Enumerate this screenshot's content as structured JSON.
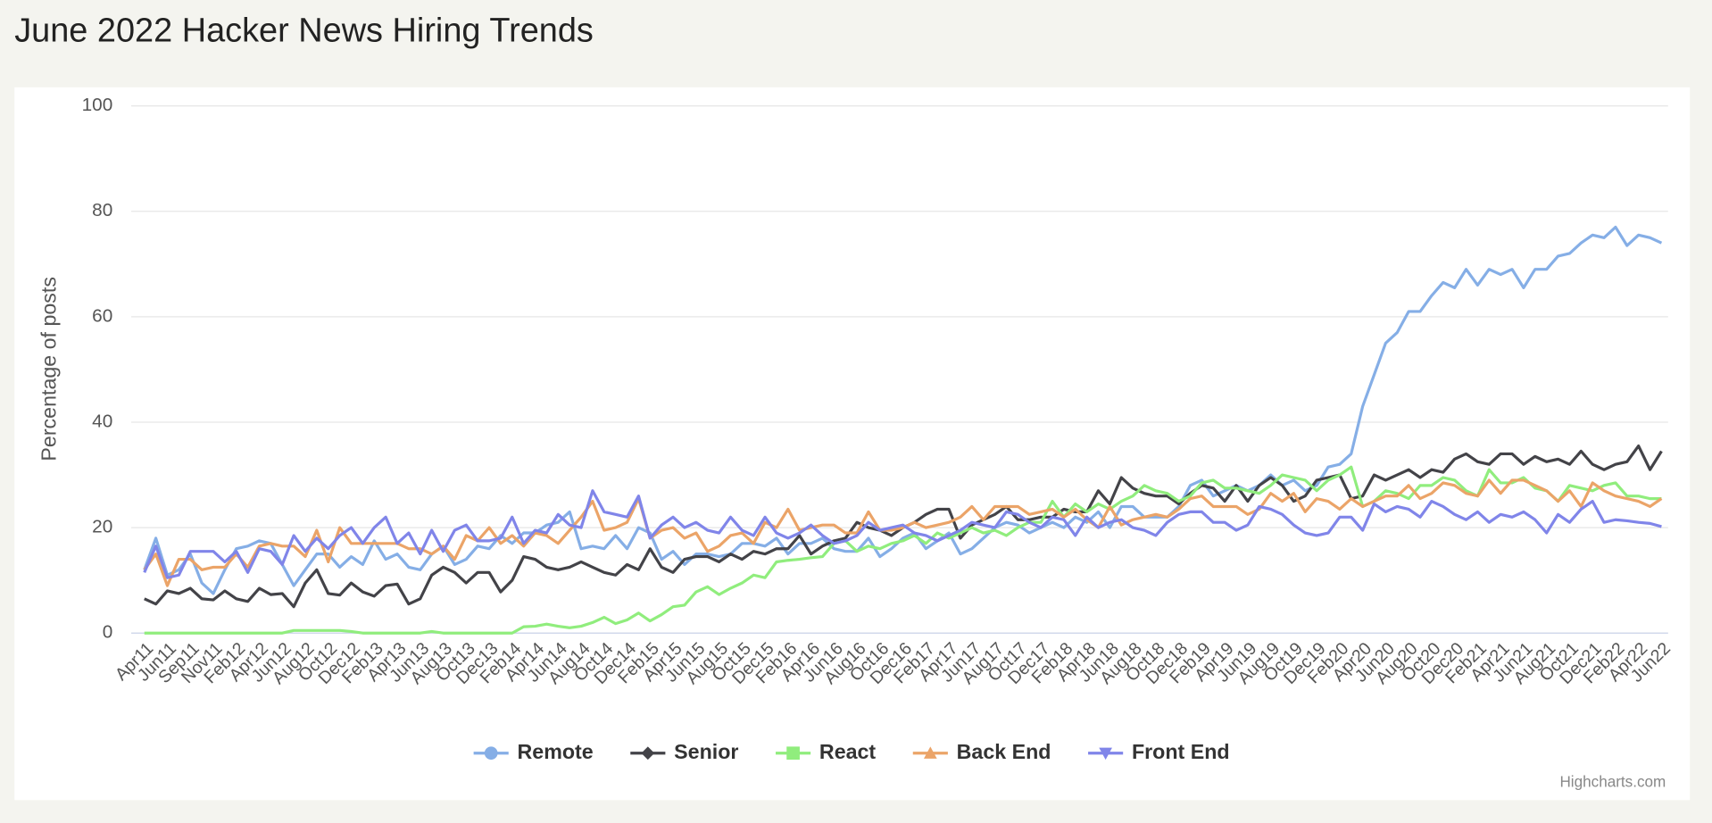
{
  "chart_data": {
    "type": "line",
    "title": "June 2022 Hacker News Hiring Trends",
    "y_label": "Percentage of posts",
    "credits": "Highcharts.com",
    "categories": [
      "Apr11",
      null,
      "Jun11",
      null,
      "Sep11",
      null,
      "Nov11",
      null,
      "Feb12",
      null,
      "Apr12",
      null,
      "Jun12",
      null,
      "Aug12",
      null,
      "Oct12",
      null,
      "Dec12",
      null,
      "Feb13",
      null,
      "Apr13",
      null,
      "Jun13",
      null,
      "Aug13",
      null,
      "Oct13",
      null,
      "Dec13",
      null,
      "Feb14",
      null,
      "Apr14",
      null,
      "Jun14",
      null,
      "Aug14",
      null,
      "Oct14",
      null,
      "Dec14",
      null,
      "Feb15",
      null,
      "Apr15",
      null,
      "Jun15",
      null,
      "Aug15",
      null,
      "Oct15",
      null,
      "Dec15",
      null,
      "Feb16",
      null,
      "Apr16",
      null,
      "Jun16",
      null,
      "Aug16",
      null,
      "Oct16",
      null,
      "Dec16",
      null,
      "Feb17",
      null,
      "Apr17",
      null,
      "Jun17",
      null,
      "Aug17",
      null,
      "Oct17",
      null,
      "Dec17",
      null,
      "Feb18",
      null,
      "Apr18",
      null,
      "Jun18",
      null,
      "Aug18",
      null,
      "Oct18",
      null,
      "Dec18",
      null,
      "Feb19",
      null,
      "Apr19",
      null,
      "Jun19",
      null,
      "Aug19",
      null,
      "Oct19",
      null,
      "Dec19",
      null,
      "Feb20",
      null,
      "Apr20",
      null,
      "Jun20",
      null,
      "Aug20",
      null,
      "Oct20",
      null,
      "Dec20",
      null,
      "Feb21",
      null,
      "Apr21",
      null,
      "Jun21",
      null,
      "Aug21",
      null,
      "Oct21",
      null,
      "Dec21",
      null,
      "Feb22",
      null,
      "Apr22",
      null,
      "Jun22"
    ],
    "series": [
      {
        "name": "Remote",
        "color": "#85aee6",
        "values": [
          12,
          18,
          11,
          12,
          15,
          9.5,
          7.5,
          12,
          16,
          16.5,
          17.5,
          17,
          13,
          9,
          12,
          15,
          15,
          12.5,
          14.5,
          13,
          17.5,
          14,
          15,
          12.5,
          12,
          15,
          16.5,
          13,
          14,
          16.5,
          16,
          18.5,
          17,
          19,
          19,
          20.5,
          21,
          23,
          16,
          16.5,
          16,
          18.5,
          16,
          20,
          19,
          14,
          15.5,
          13,
          15,
          15,
          14.5,
          15,
          17,
          17,
          16.5,
          18,
          15,
          17,
          17,
          18,
          16,
          15.5,
          15.5,
          18,
          14.5,
          16,
          18,
          19,
          16,
          17.5,
          19,
          15,
          16,
          18,
          20,
          21,
          20.5,
          19,
          20,
          21,
          20,
          22,
          21,
          23,
          20,
          24,
          24,
          22,
          22,
          22,
          24,
          28,
          29,
          26,
          27,
          28,
          27,
          28,
          30,
          28,
          29,
          27,
          28,
          31.5,
          32,
          34,
          43,
          49,
          55,
          57,
          61,
          61,
          64,
          66.5,
          65.5,
          69,
          66,
          69,
          68,
          69,
          65.5,
          69,
          69,
          71.5,
          72,
          74,
          75.5,
          75,
          77,
          73.5,
          75.5,
          75,
          74
        ]
      },
      {
        "name": "Senior",
        "color": "#434348",
        "values": [
          6.5,
          5.5,
          8,
          7.5,
          8.5,
          6.5,
          6.3,
          8,
          6.5,
          6,
          8.5,
          7.3,
          7.5,
          5,
          9.5,
          12,
          7.5,
          7.2,
          9.5,
          7.8,
          7,
          9,
          9.3,
          5.5,
          6.5,
          11,
          12.5,
          11.5,
          9.5,
          11.5,
          11.5,
          7.8,
          10,
          14.5,
          14,
          12.5,
          12,
          12.5,
          13.5,
          12.5,
          11.5,
          11,
          13,
          12,
          16,
          12.5,
          11.5,
          14,
          14.5,
          14.5,
          13.5,
          15,
          14,
          15.5,
          15,
          16,
          16,
          18.5,
          15,
          16.5,
          17.5,
          18,
          21,
          20,
          19.5,
          18.5,
          20,
          21,
          22.5,
          23.5,
          23.5,
          18,
          20.5,
          21.5,
          22.5,
          24,
          21.5,
          21.5,
          22,
          22,
          23.5,
          23,
          23,
          27,
          24.5,
          29.5,
          27.5,
          26.5,
          26,
          26,
          24.5,
          26.5,
          28,
          27.5,
          25,
          28,
          25,
          28,
          29.5,
          28,
          25,
          26,
          29,
          29.5,
          30,
          25.5,
          26,
          30,
          29,
          30,
          31,
          29.5,
          31,
          30.5,
          33,
          34,
          32.5,
          32,
          34,
          34,
          32,
          33.5,
          32.5,
          33,
          32,
          34.5,
          32,
          31,
          32,
          32.5,
          35.5,
          31,
          34.5
        ]
      },
      {
        "name": "React",
        "color": "#90ed7d",
        "values": [
          0,
          0,
          0,
          0,
          0,
          0,
          0,
          0,
          0,
          0,
          0,
          0,
          0,
          0.5,
          0.5,
          0.5,
          0.5,
          0.5,
          0.3,
          0,
          0,
          0,
          0,
          0,
          0,
          0.3,
          0,
          0,
          0,
          0,
          0,
          0,
          0,
          1.2,
          1.3,
          1.7,
          1.3,
          1,
          1.3,
          2,
          3,
          1.8,
          2.5,
          3.8,
          2.3,
          3.5,
          5,
          5.3,
          7.8,
          8.8,
          7.3,
          8.5,
          9.5,
          11,
          10.5,
          13.5,
          13.8,
          14,
          14.3,
          14.5,
          17,
          17.5,
          15.5,
          16.5,
          16,
          17,
          17.5,
          18.5,
          17,
          19,
          18,
          19,
          20,
          19,
          19.5,
          18.5,
          20,
          21,
          21,
          25,
          22,
          24.5,
          23,
          24.5,
          23.5,
          25,
          26,
          28,
          27,
          26.5,
          25,
          26,
          28.5,
          29,
          27.5,
          27.5,
          27,
          26.5,
          28,
          30,
          29.5,
          29,
          27,
          29,
          30,
          31.5,
          24,
          25,
          27,
          26.5,
          25.5,
          28,
          28,
          29.5,
          29,
          27,
          26,
          31,
          28.5,
          28.5,
          29.5,
          27.5,
          27,
          25,
          28,
          27.5,
          27,
          28,
          28.5,
          26,
          26,
          25.5,
          25.5
        ]
      },
      {
        "name": "Back End",
        "color": "#eba468",
        "values": [
          12,
          15,
          9,
          14,
          14,
          12,
          12.5,
          12.5,
          15,
          12.5,
          16.5,
          17,
          16.5,
          16.5,
          14.5,
          19.5,
          13.5,
          20,
          17,
          17,
          17,
          17,
          17,
          16,
          16,
          15,
          16.5,
          14,
          18.5,
          17.5,
          20,
          17,
          18.5,
          16.5,
          19,
          18.5,
          17,
          19.5,
          22,
          25,
          19.5,
          20,
          21,
          25.5,
          18,
          19.5,
          20,
          18,
          19,
          15.5,
          16.5,
          18.5,
          19,
          17,
          21,
          20,
          23.5,
          19.5,
          20,
          20.5,
          20.5,
          19,
          19,
          23,
          19.5,
          19.5,
          20,
          21,
          20,
          20.5,
          21,
          22,
          24,
          21.5,
          24,
          24,
          24,
          22.5,
          23,
          23.5,
          22,
          23.5,
          21.5,
          20,
          24,
          20.5,
          21.5,
          22,
          22.5,
          22,
          23.5,
          25.5,
          26,
          24,
          24,
          24,
          22.5,
          23.5,
          26.5,
          25,
          26.5,
          23,
          25.5,
          25,
          23.5,
          25.5,
          24,
          25,
          26,
          26,
          28,
          25.5,
          26.5,
          28.5,
          28,
          26.5,
          26,
          29,
          26.5,
          29,
          29,
          28,
          27,
          25,
          27,
          24,
          28.5,
          27,
          26,
          25.5,
          25,
          24,
          25.5
        ]
      },
      {
        "name": "Front End",
        "color": "#8085e9",
        "values": [
          11.5,
          16.5,
          10.5,
          11,
          15.5,
          15.5,
          15.5,
          13.5,
          15.5,
          11.5,
          16,
          15.5,
          13,
          18.5,
          15.5,
          18,
          16,
          18.5,
          20,
          17,
          20,
          22,
          17,
          19,
          15,
          19.5,
          15.5,
          19.5,
          20.5,
          17.5,
          17.5,
          18,
          22,
          17,
          19.5,
          19,
          22.5,
          20.5,
          20,
          27,
          23,
          22.5,
          22,
          26,
          18,
          20.5,
          22,
          20,
          21,
          19.5,
          19,
          22,
          19.5,
          18.5,
          22,
          19,
          18,
          19,
          20.5,
          18.5,
          17,
          17.5,
          18.5,
          21,
          19.5,
          20,
          20.5,
          19,
          18.5,
          17.5,
          18.5,
          19.5,
          21,
          20.5,
          20,
          23,
          22.5,
          21,
          20,
          22,
          21.5,
          18.5,
          22,
          20,
          21,
          21.5,
          20,
          19.5,
          18.5,
          21,
          22.5,
          23,
          23,
          21,
          21,
          19.5,
          20.5,
          24,
          23.5,
          22.5,
          20.5,
          19,
          18.5,
          19,
          22,
          22,
          19.5,
          24.5,
          23,
          24,
          23.5,
          22,
          25,
          24,
          22.5,
          21.5,
          23,
          21,
          22.5,
          22,
          23,
          21.5,
          19,
          22.5,
          21,
          23.5,
          25,
          21,
          21.5,
          21.3,
          21,
          20.8,
          20.2
        ]
      }
    ],
    "ylim": [
      0,
      100
    ],
    "yticks": [
      0,
      20,
      40,
      60,
      80,
      100
    ],
    "grid": true
  }
}
